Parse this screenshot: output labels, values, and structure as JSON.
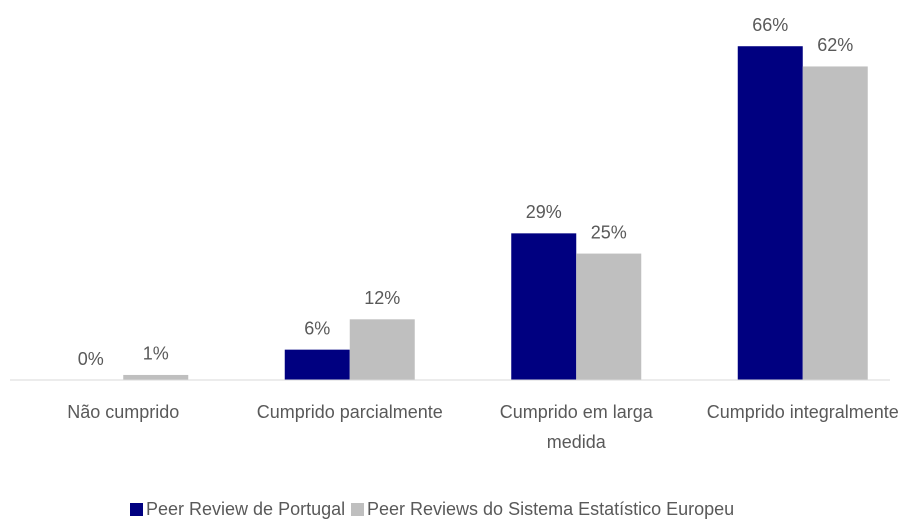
{
  "chart_data": {
    "type": "bar",
    "categories": [
      "Não cumprido",
      "Cumprido parcialmente",
      "Cumprido em larga medida",
      "Cumprido integralmente"
    ],
    "series": [
      {
        "name": "Peer Review de Portugal",
        "color": "#000080",
        "values": [
          0,
          6,
          29,
          66
        ],
        "value_labels": [
          "0%",
          "6%",
          "29%",
          "66%"
        ]
      },
      {
        "name": "Peer Reviews do Sistema Estatístico Europeu",
        "color": "#bfbfbf",
        "values": [
          1,
          12,
          25,
          62
        ],
        "value_labels": [
          "1%",
          "12%",
          "25%",
          "62%"
        ]
      }
    ],
    "ylim": [
      0,
      70
    ],
    "legend": "bottom"
  }
}
